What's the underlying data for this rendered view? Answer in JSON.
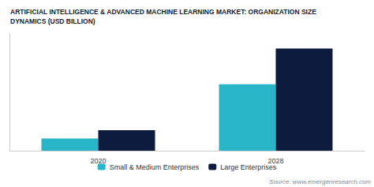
{
  "chart_data": {
    "type": "bar",
    "title": "ARTIFICIAL INTELLIGENCE & ADVANCED MACHINE LEARNING MARKET: ORGANIZATION SIZE\nDYNAMICS (USD BILLION)",
    "categories": [
      "2020",
      "2028"
    ],
    "series": [
      {
        "name": "Small & Medium Enterprises",
        "color": "#29b5c8",
        "values": [
          1.2,
          6.5
        ]
      },
      {
        "name": "Large Enterprises",
        "color": "#0d1b3e",
        "values": [
          2.0,
          10.0
        ]
      }
    ],
    "ylim": [
      0,
      11.5
    ],
    "grid": false,
    "legend": "bottom",
    "tick_labels": "x",
    "annotations": [
      "Source: www.emergenresearch.com"
    ]
  }
}
